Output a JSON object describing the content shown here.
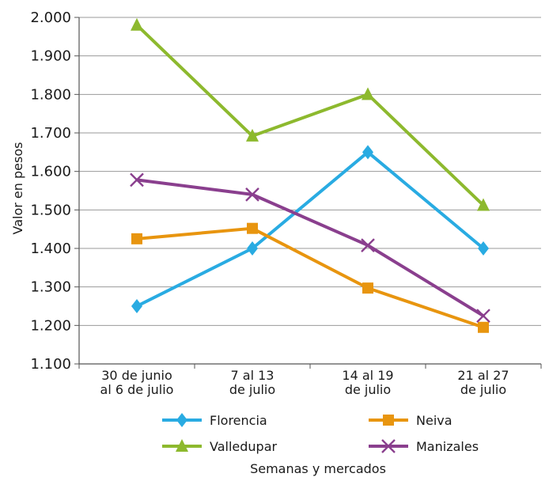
{
  "chart_data": {
    "type": "line",
    "categories": [
      [
        "30 de junio",
        "al 6 de julio"
      ],
      [
        "7 al 13",
        "de julio"
      ],
      [
        "14 al 19",
        "de julio"
      ],
      [
        "21 al 27",
        "de julio"
      ]
    ],
    "series": [
      {
        "name": "Florencia",
        "color": "#29ABE2",
        "marker": "diamond",
        "values": [
          1250,
          1400,
          1650,
          1400
        ]
      },
      {
        "name": "Neiva",
        "color": "#E8950F",
        "marker": "square",
        "values": [
          1425,
          1452,
          1297,
          1195
        ]
      },
      {
        "name": "Valledupar",
        "color": "#8DB92E",
        "marker": "triangle",
        "values": [
          1980,
          1692,
          1800,
          1512
        ]
      },
      {
        "name": "Manizales",
        "color": "#8A3F8E",
        "marker": "x",
        "values": [
          1578,
          1540,
          1408,
          1225
        ]
      }
    ],
    "yticks": [
      "1.100",
      "1.200",
      "1.300",
      "1.400",
      "1.500",
      "1.600",
      "1.700",
      "1.800",
      "1.900",
      "2.000"
    ],
    "ylim": [
      1100,
      2000
    ],
    "ylabel": "Valor en pesos",
    "xlabel": "Semanas y mercados",
    "grid": true,
    "legend_position": "bottom"
  }
}
